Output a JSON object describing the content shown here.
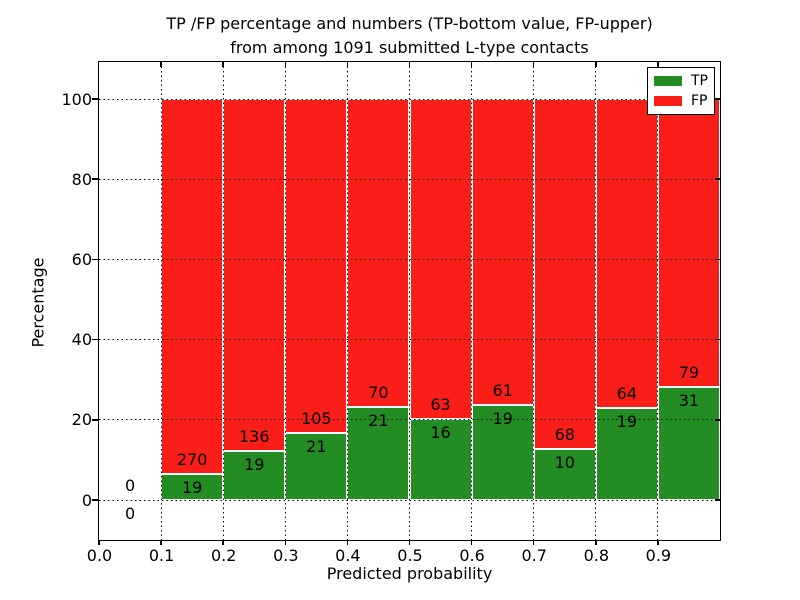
{
  "chart_data": {
    "type": "bar",
    "stacked": true,
    "normalized_to_percent": true,
    "title_line1": "TP /FP percentage and numbers (TP-bottom value, FP-upper)",
    "title_line2": "from among 1091 submitted L-type contacts",
    "xlabel": "Predicted probability",
    "ylabel": "Percentage",
    "x_ticks": [
      "0.0",
      "0.1",
      "0.2",
      "0.3",
      "0.4",
      "0.5",
      "0.6",
      "0.7",
      "0.8",
      "0.9"
    ],
    "y_ticks": [
      "0",
      "20",
      "40",
      "60",
      "80",
      "100"
    ],
    "xlim": [
      0.0,
      1.0
    ],
    "ylim": [
      -10,
      110
    ],
    "grid": "dotted",
    "legend_position": "upper right",
    "legend": [
      {
        "label": "TP",
        "color": "#238c23"
      },
      {
        "label": "FP",
        "color": "#fa1e19"
      }
    ],
    "colors": {
      "tp": "#238c23",
      "fp": "#fa1e19",
      "bar_edge": "#ffffff",
      "text": "#000000"
    },
    "bins": [
      {
        "x0": 0.0,
        "x1": 0.1,
        "tp": 0,
        "fp": 0,
        "tp_label": "0",
        "fp_label": "0"
      },
      {
        "x0": 0.1,
        "x1": 0.2,
        "tp": 19,
        "fp": 270,
        "tp_label": "19",
        "fp_label": "270"
      },
      {
        "x0": 0.2,
        "x1": 0.3,
        "tp": 19,
        "fp": 136,
        "tp_label": "19",
        "fp_label": "136"
      },
      {
        "x0": 0.3,
        "x1": 0.4,
        "tp": 21,
        "fp": 105,
        "tp_label": "21",
        "fp_label": "105"
      },
      {
        "x0": 0.4,
        "x1": 0.5,
        "tp": 21,
        "fp": 70,
        "tp_label": "21",
        "fp_label": "70"
      },
      {
        "x0": 0.5,
        "x1": 0.6,
        "tp": 16,
        "fp": 63,
        "tp_label": "16",
        "fp_label": "63"
      },
      {
        "x0": 0.6,
        "x1": 0.7,
        "tp": 19,
        "fp": 61,
        "tp_label": "19",
        "fp_label": "61"
      },
      {
        "x0": 0.7,
        "x1": 0.8,
        "tp": 10,
        "fp": 68,
        "tp_label": "10",
        "fp_label": "68"
      },
      {
        "x0": 0.8,
        "x1": 0.9,
        "tp": 19,
        "fp": 64,
        "tp_label": "19",
        "fp_label": "64"
      },
      {
        "x0": 0.9,
        "x1": 1.0,
        "tp": 31,
        "fp": 79,
        "tp_label": "31",
        "fp_label": "79"
      }
    ],
    "totals": {
      "tp_sum": 175,
      "fp_sum": 916,
      "submitted": 1091
    }
  }
}
